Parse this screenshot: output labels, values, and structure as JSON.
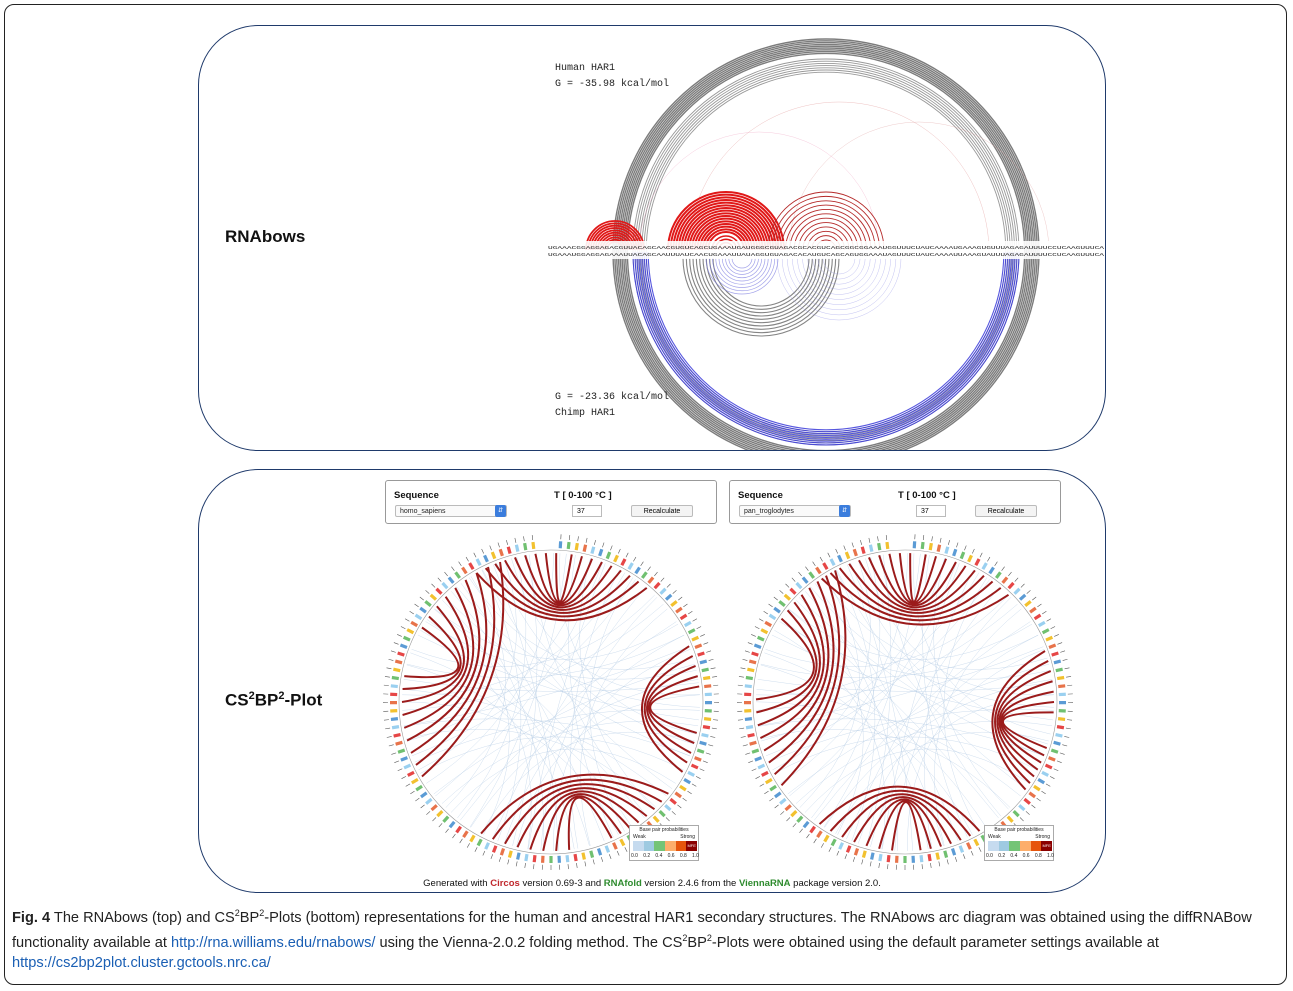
{
  "rnabows": {
    "label": "RNAbows",
    "top_name": "Human HAR1",
    "top_energy": "G = -35.98 kcal/mol",
    "bottom_energy": "G = -23.36 kcal/mol",
    "bottom_name": "Chimp HAR1",
    "seq_top": "UGAAACGGAGGAGACGUUACAGCAACGUGUCAGCUGAAAUGAUGGGCGUAGACGCACGUCAGCGGCGGAAAUGGUUUCUAUCAAAAUGAAAGUGUUUAGAGAUUUUCCUCAAGUUUCA",
    "seq_bottom": "UGAAAUGGAGGAGAAAUUACAGCAAUUUAUCAACUGAAAUUAUAGGUGUAGACACAUGUCAGCAGUGGAAAUAGUUUCUAUCAAAAUUAAAGUAUUUAGAGAUUUUCCUCAAGUUUCA",
    "colors": {
      "red": "#e01818",
      "gray": "#6e6e6e",
      "blue": "#3a3ad8"
    }
  },
  "cs2bp2": {
    "label_parts": {
      "a": "CS",
      "b": "2",
      "c": "BP",
      "d": "2",
      "e": "-Plot"
    },
    "left_form": {
      "seq_label": "Sequence",
      "temp_label": "T [ 0-100 °C ]",
      "selected": "homo_sapiens",
      "temp_value": "37",
      "button": "Recalculate"
    },
    "right_form": {
      "seq_label": "Sequence",
      "temp_label": "T [ 0-100 °C ]",
      "selected": "pan_troglodytes",
      "temp_value": "37",
      "button": "Recalculate"
    },
    "legend": {
      "title": "Base pair probabilities",
      "weak": "Weak",
      "strong": "Strong",
      "mfe": "MFE",
      "ticks": [
        "0.0",
        "0.2",
        "0.4",
        "0.6",
        "0.8",
        "1.0"
      ]
    },
    "generated": {
      "p1": "Generated with ",
      "circos": "Circos",
      "p2": " version 0.69-3 and ",
      "rnafold": "RNAfold",
      "p3": " version 2.4.6 from the ",
      "vienna": "ViennaRNA",
      "p4": " package version 2.0."
    },
    "colors": {
      "arc": "#9b1b1b",
      "faint": "#a8c4e0",
      "ring": [
        "#5b9bd5",
        "#70c070",
        "#f2c12e",
        "#e8734a",
        "#e64646",
        "#9ad0f0"
      ]
    }
  },
  "caption": {
    "fig": "Fig. 4",
    "t1": " The RNAbows (top) and CS",
    "s1": "2",
    "t2": "BP",
    "s2": "2",
    "t3": "-Plots (bottom) representations for the human and ancestral HAR1 secondary structures. The RNAbows arc diagram was obtained using the diffRNABow functionality available at ",
    "link1": "http://rna.williams.edu/rnabows/",
    "t4": " using the Vienna-2.0.2 folding method. The CS",
    "s3": "2",
    "t5": "BP",
    "s4": "2",
    "t6": "-Plots were obtained using the default parameter settings available at ",
    "link2": "https://cs2bp2plot.cluster.gctools.nrc.ca/"
  }
}
